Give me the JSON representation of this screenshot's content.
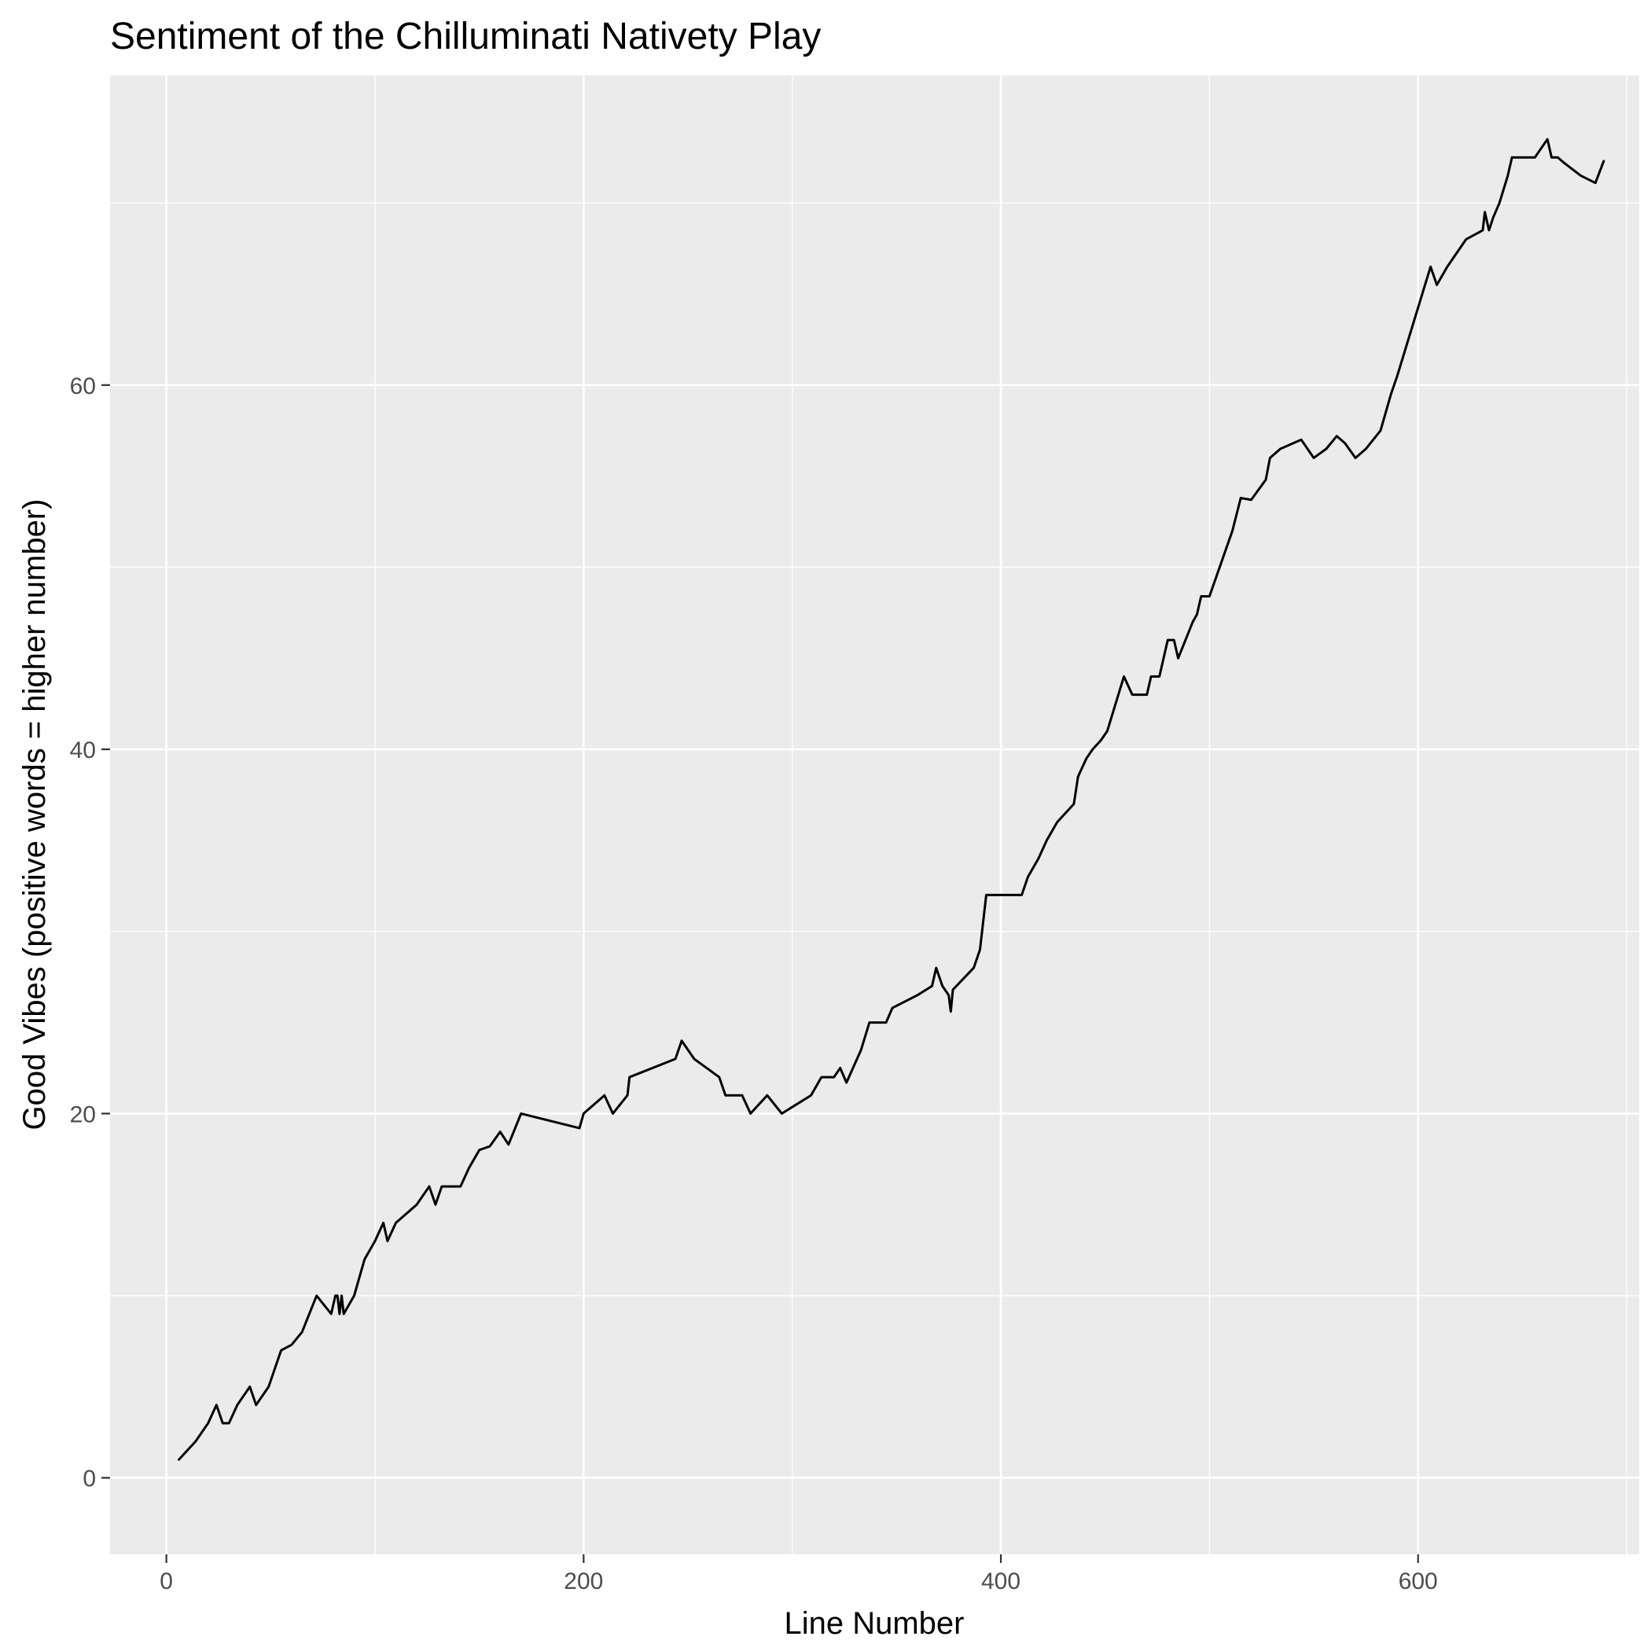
{
  "chart_data": {
    "type": "line",
    "title": "Sentiment of the Chilluminati Nativety Play",
    "xlabel": "Line Number",
    "ylabel": "Good Vibes (positive words = higher number)",
    "xlim": [
      -27,
      706
    ],
    "ylim": [
      -4.2,
      77
    ],
    "x_ticks": [
      0,
      200,
      400,
      600
    ],
    "x_minor_ticks": [
      100,
      300,
      500,
      700
    ],
    "y_ticks": [
      0,
      20,
      40,
      60
    ],
    "y_minor_ticks": [
      10,
      30,
      50,
      70
    ],
    "grid": true,
    "legend": "none",
    "colors": {
      "panel_background": "#EBEBEB",
      "grid": "#FFFFFF",
      "line": "#000000",
      "tick_label": "#4D4D4D"
    },
    "series": [
      {
        "x": [
          6,
          14,
          20,
          24,
          27,
          30,
          34,
          40,
          43,
          49,
          55,
          60,
          65,
          72,
          79,
          81,
          82,
          83,
          84,
          85,
          90,
          95,
          100,
          104,
          106,
          110,
          120,
          126,
          129,
          132,
          141,
          145,
          150,
          155,
          160,
          164,
          170,
          198,
          200,
          210,
          214,
          221,
          222,
          244,
          247,
          253,
          265,
          268,
          276,
          280,
          288,
          295,
          309,
          314,
          320,
          323,
          326,
          333,
          337,
          345,
          348,
          360,
          367,
          369,
          372,
          375,
          376,
          377,
          387,
          390,
          393,
          410,
          413,
          418,
          422,
          427,
          435,
          437,
          441,
          444,
          448,
          451,
          455,
          459,
          463,
          470,
          472,
          476,
          480,
          483,
          485,
          492,
          494,
          496,
          500,
          511,
          515,
          520,
          527,
          529,
          534,
          544,
          550,
          556,
          561,
          565,
          570,
          575,
          582,
          587,
          590,
          594,
          598,
          602,
          606,
          609,
          614,
          617,
          623,
          631,
          632,
          634,
          636,
          639,
          643,
          645,
          656,
          662,
          664,
          667,
          670,
          678,
          685,
          689
        ],
        "y": [
          1,
          2,
          3,
          4,
          3,
          3,
          4,
          5,
          4,
          5,
          7,
          7.3,
          8,
          10,
          9,
          10,
          10,
          9,
          10,
          9,
          10,
          12,
          13,
          14,
          13,
          14,
          15,
          16,
          15,
          16,
          16,
          17,
          18,
          18.2,
          19,
          18.3,
          20,
          19.2,
          20,
          21,
          20,
          21,
          22,
          23,
          24,
          23,
          22,
          21,
          21,
          20,
          21,
          20,
          21,
          22,
          22,
          22.5,
          21.7,
          23.5,
          25,
          25,
          25.8,
          26.5,
          27,
          28,
          27,
          26.5,
          25.6,
          26.8,
          28,
          29,
          32,
          32,
          33,
          34,
          35,
          36,
          37,
          38.5,
          39.5,
          40,
          40.5,
          41,
          42.5,
          44,
          43,
          43,
          44,
          44,
          46,
          46,
          45,
          47,
          47.4,
          48.4,
          48.4,
          52,
          53.8,
          53.7,
          54.8,
          56,
          56.5,
          57,
          56,
          56.5,
          57.2,
          56.8,
          56,
          56.5,
          57.5,
          59.5,
          60.5,
          62,
          63.5,
          65,
          66.5,
          65.5,
          66.5,
          67,
          68,
          68.5,
          69.5,
          68.5,
          69.2,
          70,
          71.5,
          72.5,
          72.5,
          73.5,
          72.5,
          72.5,
          72.2,
          71.5,
          71.1,
          72.3
        ]
      }
    ]
  }
}
